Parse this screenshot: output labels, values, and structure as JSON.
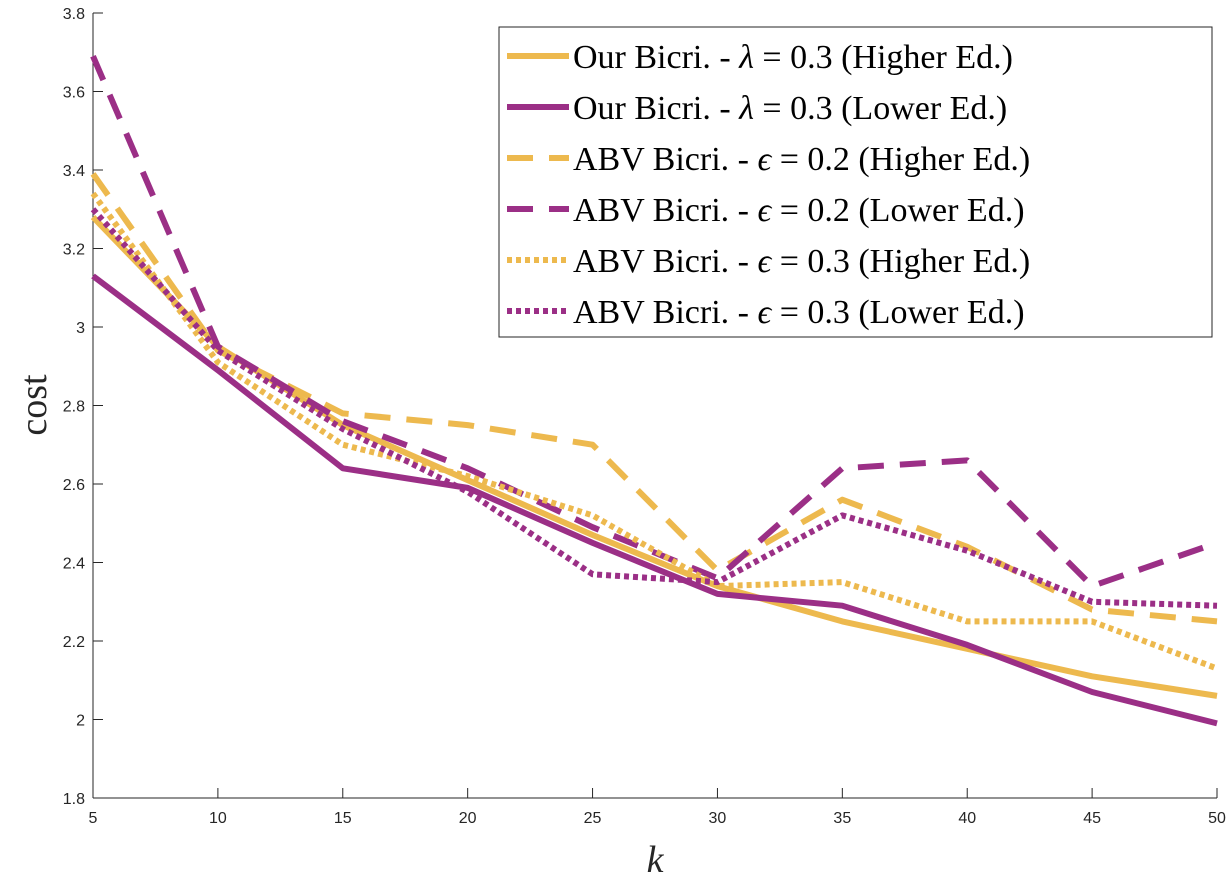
{
  "chart_data": {
    "type": "line",
    "title": "",
    "xlabel": "k",
    "ylabel": "cost",
    "xlim": [
      5,
      50
    ],
    "ylim": [
      1.8,
      3.8
    ],
    "x": [
      5,
      10,
      15,
      20,
      25,
      30,
      35,
      40,
      45,
      50
    ],
    "xticks": [
      "5",
      "10",
      "15",
      "20",
      "25",
      "30",
      "35",
      "40",
      "45",
      "50"
    ],
    "yticks": [
      "1.8",
      "2",
      "2.2",
      "2.4",
      "2.6",
      "2.8",
      "3",
      "3.2",
      "3.4",
      "3.6",
      "3.8"
    ],
    "legend_position": "top-right",
    "colors": {
      "higher": "#EDB94E",
      "lower": "#9B2F86"
    },
    "series": [
      {
        "name": "Our Bicri. - λ = 0.3 (Higher Ed.)",
        "style": "solid",
        "color": "#EDB94E",
        "values": [
          3.28,
          2.95,
          2.75,
          2.61,
          2.47,
          2.34,
          2.25,
          2.18,
          2.11,
          2.06
        ]
      },
      {
        "name": "Our Bicri. - λ = 0.3 (Lower Ed.)",
        "style": "solid",
        "color": "#9B2F86",
        "values": [
          3.13,
          2.89,
          2.64,
          2.59,
          2.45,
          2.32,
          2.29,
          2.19,
          2.07,
          1.99
        ]
      },
      {
        "name": "ABV Bicri. - ϵ = 0.2 (Higher Ed.)",
        "style": "dashed",
        "color": "#EDB94E",
        "values": [
          3.39,
          2.94,
          2.78,
          2.75,
          2.7,
          2.38,
          2.56,
          2.44,
          2.28,
          2.25
        ]
      },
      {
        "name": "ABV Bicri. - ϵ = 0.2 (Lower Ed.)",
        "style": "dashed",
        "color": "#9B2F86",
        "values": [
          3.69,
          2.95,
          2.76,
          2.64,
          2.49,
          2.36,
          2.64,
          2.66,
          2.34,
          2.45
        ]
      },
      {
        "name": "ABV Bicri. - ϵ = 0.3 (Higher Ed.)",
        "style": "dotted",
        "color": "#EDB94E",
        "values": [
          3.34,
          2.91,
          2.7,
          2.62,
          2.52,
          2.34,
          2.35,
          2.25,
          2.25,
          2.13
        ]
      },
      {
        "name": "ABV Bicri. - ϵ = 0.3 (Lower Ed.)",
        "style": "dotted",
        "color": "#9B2F86",
        "values": [
          3.3,
          2.94,
          2.74,
          2.58,
          2.37,
          2.35,
          2.52,
          2.43,
          2.3,
          2.29
        ]
      }
    ],
    "legend": [
      {
        "prefix": "Our Bicri. - ",
        "symbol": "λ",
        "suffix": " = 0.3 (Higher Ed.)"
      },
      {
        "prefix": "Our Bicri. - ",
        "symbol": "λ",
        "suffix": " = 0.3 (Lower Ed.)"
      },
      {
        "prefix": "ABV Bicri. - ",
        "symbol": "ϵ",
        "suffix": " = 0.2 (Higher Ed.)"
      },
      {
        "prefix": "ABV Bicri. - ",
        "symbol": "ϵ",
        "suffix": " = 0.2 (Lower Ed.)"
      },
      {
        "prefix": "ABV Bicri. - ",
        "symbol": "ϵ",
        "suffix": " = 0.3 (Higher Ed.)"
      },
      {
        "prefix": "ABV Bicri. - ",
        "symbol": "ϵ",
        "suffix": " = 0.3 (Lower Ed.)"
      }
    ]
  }
}
